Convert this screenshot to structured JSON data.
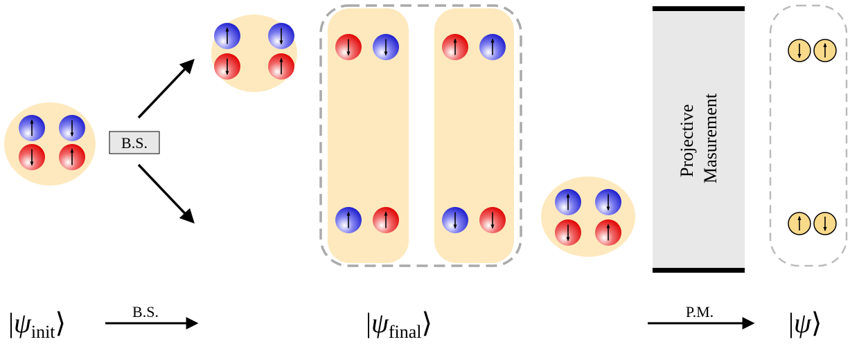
{
  "box_label": "B.S.",
  "measurement": {
    "lines": [
      "Projective",
      "Masurement"
    ]
  },
  "ket": {
    "open": "|",
    "close": "⟩",
    "symbol": "ψ"
  },
  "labels": {
    "init": "init",
    "bs_arrow": "B.S.",
    "final": "final",
    "pm_arrow": "P.M."
  }
}
